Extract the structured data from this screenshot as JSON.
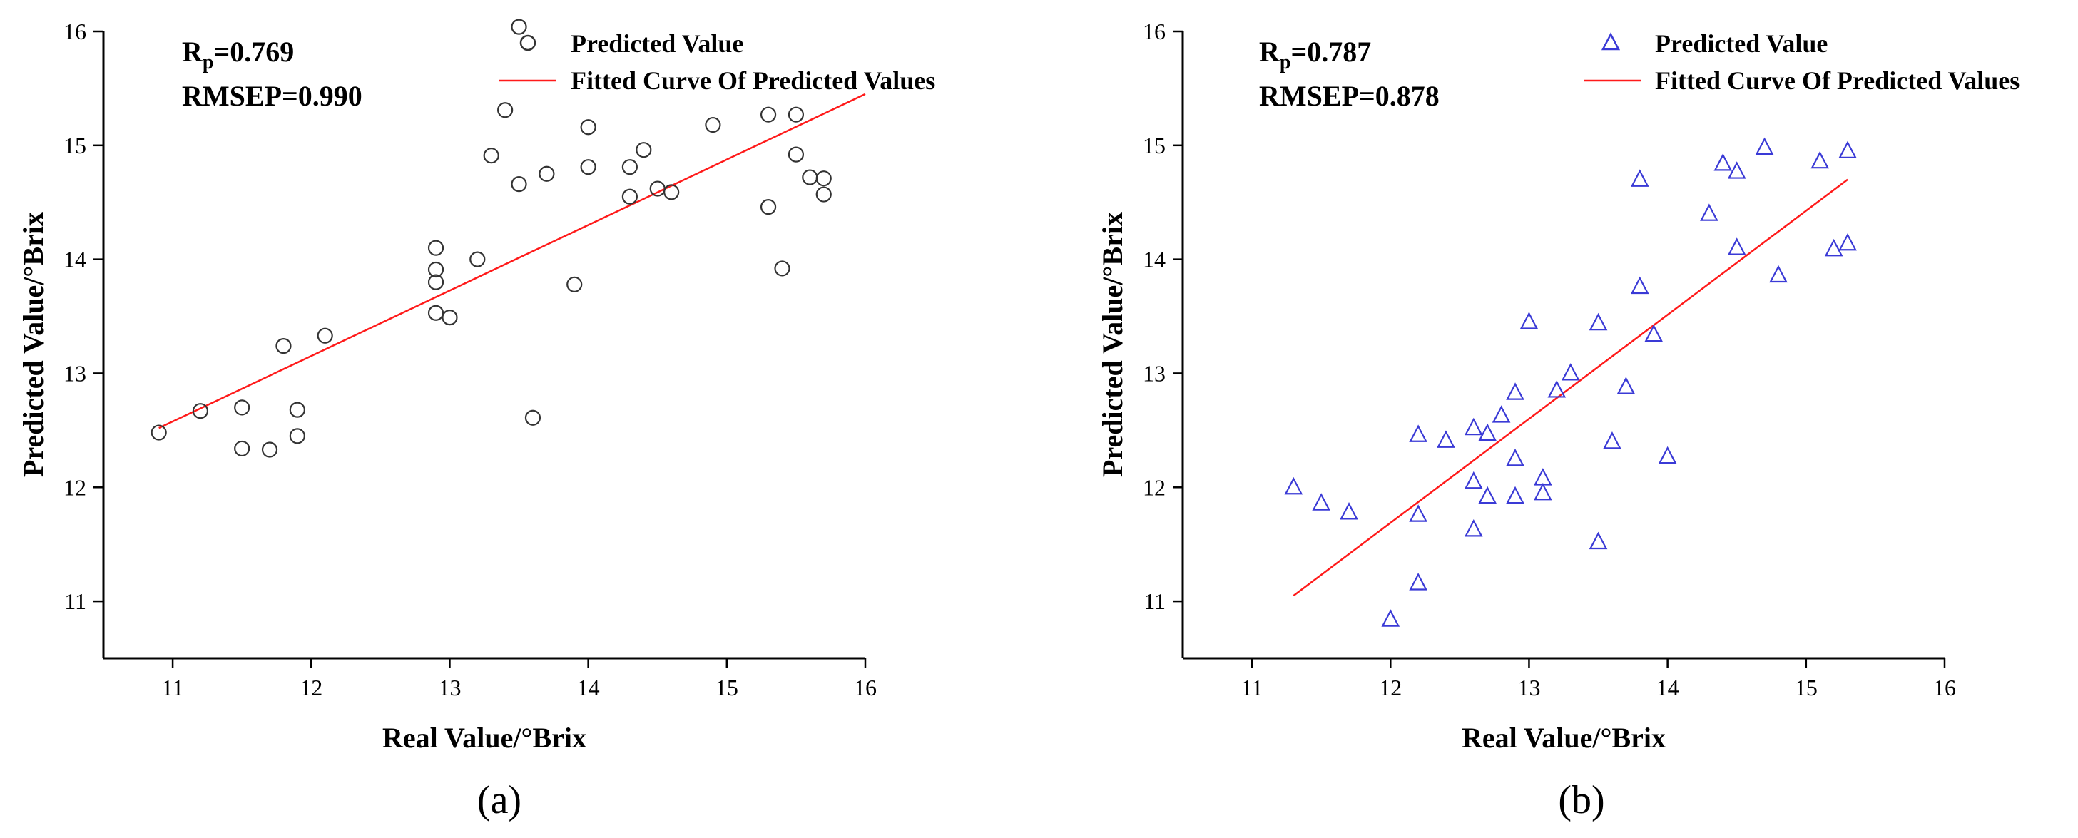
{
  "chart_data": [
    {
      "type": "scatter",
      "panel": "a",
      "caption": "(a)",
      "xlabel": "Real Value/°Brix",
      "ylabel": "Predicted Value/°Brix",
      "xlim": [
        10.5,
        16
      ],
      "ylim": [
        10.5,
        16
      ],
      "xticks": [
        "11",
        "12",
        "13",
        "14",
        "15",
        "16"
      ],
      "yticks": [
        "11",
        "12",
        "13",
        "14",
        "15",
        "16"
      ],
      "stats": {
        "r_main": "R",
        "r_sub": "p",
        "r_value": "=0.769",
        "rmsep": "RMSEP=0.990"
      },
      "legend": {
        "points_label": "Predicted Value",
        "line_label": "Fitted Curve Of Predicted Values"
      },
      "marker": "circle",
      "marker_color": "#333333",
      "line_color": "#ff1a1a",
      "fit": {
        "x": [
          10.9,
          16.0
        ],
        "y": [
          12.52,
          15.45
        ]
      },
      "points": {
        "x": [
          10.9,
          11.2,
          11.5,
          11.5,
          11.7,
          11.8,
          11.9,
          11.9,
          12.1,
          12.9,
          12.9,
          12.9,
          12.9,
          13.0,
          13.2,
          13.3,
          13.4,
          13.5,
          13.6,
          13.7,
          13.9,
          14.0,
          14.0,
          14.3,
          14.3,
          14.4,
          14.5,
          14.6,
          14.9,
          15.3,
          15.3,
          15.4,
          15.5,
          15.5,
          15.6,
          15.7,
          15.7,
          13.5
        ],
        "y": [
          12.48,
          12.67,
          12.7,
          12.34,
          12.33,
          13.24,
          12.68,
          12.45,
          13.33,
          14.1,
          13.91,
          13.8,
          13.53,
          13.49,
          14.0,
          14.91,
          15.31,
          14.66,
          12.61,
          14.75,
          13.78,
          15.16,
          14.81,
          14.81,
          14.55,
          14.96,
          14.62,
          14.59,
          15.18,
          15.27,
          14.46,
          13.92,
          15.27,
          14.92,
          14.72,
          14.71,
          14.57,
          16.04
        ]
      }
    },
    {
      "type": "scatter",
      "panel": "b",
      "caption": "(b)",
      "xlabel": "Real Value/°Brix",
      "ylabel": "Predicted Value/°Brix",
      "xlim": [
        10.5,
        16
      ],
      "ylim": [
        10.5,
        16
      ],
      "xticks": [
        "11",
        "12",
        "13",
        "14",
        "15",
        "16"
      ],
      "yticks": [
        "11",
        "12",
        "13",
        "14",
        "15",
        "16"
      ],
      "stats": {
        "r_main": "R",
        "r_sub": "p",
        "r_value": "=0.787",
        "rmsep": "RMSEP=0.878"
      },
      "legend": {
        "points_label": "Predicted Value",
        "line_label": "Fitted Curve Of Predicted Values"
      },
      "marker": "triangle",
      "marker_color": "#3a3ad6",
      "line_color": "#ff1a1a",
      "fit": {
        "x": [
          11.3,
          15.3
        ],
        "y": [
          11.05,
          14.7
        ]
      },
      "points": {
        "x": [
          11.3,
          11.5,
          11.7,
          12.0,
          12.2,
          12.2,
          12.2,
          12.4,
          12.6,
          12.6,
          12.6,
          12.7,
          12.7,
          12.8,
          12.9,
          12.9,
          12.9,
          13.0,
          13.1,
          13.1,
          13.2,
          13.3,
          13.5,
          13.5,
          13.6,
          13.7,
          13.8,
          13.8,
          13.9,
          14.0,
          14.3,
          14.4,
          14.5,
          14.5,
          14.7,
          14.8,
          15.1,
          15.2,
          15.3,
          15.3
        ],
        "y": [
          12.0,
          11.86,
          11.78,
          10.84,
          12.46,
          11.76,
          11.16,
          12.41,
          12.52,
          12.05,
          11.63,
          12.47,
          11.92,
          12.63,
          12.83,
          12.25,
          11.92,
          13.45,
          12.08,
          11.95,
          12.85,
          13.0,
          13.44,
          11.52,
          12.4,
          12.88,
          14.7,
          13.76,
          13.34,
          12.27,
          14.4,
          14.84,
          14.77,
          14.1,
          14.98,
          13.86,
          14.86,
          14.09,
          14.95,
          14.14
        ]
      }
    }
  ]
}
